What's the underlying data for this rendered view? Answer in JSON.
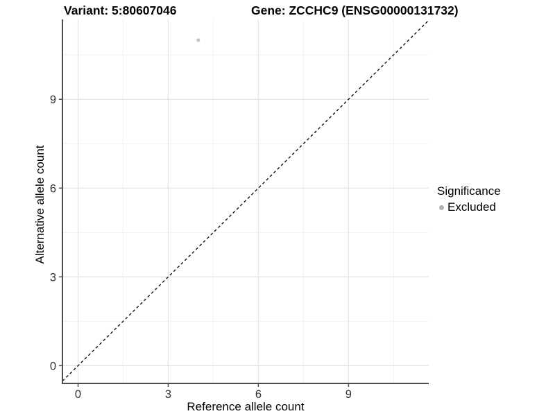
{
  "titles": {
    "variant": "Variant: 5:80607046",
    "gene": "Gene: ZCCHC9 (ENSG00000131732)"
  },
  "legend": {
    "title": "Significance",
    "items": [
      {
        "label": "Excluded",
        "color": "#b0b0b0"
      }
    ]
  },
  "chart_data": {
    "type": "scatter",
    "title": "",
    "xlabel": "Reference allele count",
    "ylabel": "Alternative allele count",
    "xlim": [
      -0.52,
      11.67
    ],
    "ylim": [
      -0.6,
      11.7
    ],
    "xticks": [
      0,
      3,
      6,
      9
    ],
    "yticks": [
      0,
      3,
      6,
      9
    ],
    "minor_xticks": [
      1.5,
      4.5,
      7.5,
      10.5
    ],
    "minor_yticks": [
      1.5,
      4.5,
      7.5,
      10.5
    ],
    "grid": "major and minor, light grey on white",
    "legend_position": "right",
    "series": [
      {
        "name": "Excluded",
        "color": "#c3c3c3",
        "points": [
          {
            "x": 4,
            "y": 11
          }
        ]
      }
    ],
    "reference_line": {
      "kind": "identity y=x",
      "style": "dashed",
      "color": "#000000"
    },
    "style": {
      "grid_major": "#e3e3e3",
      "grid_minor": "#f1f1f1",
      "axis_line": "#4d4d4d",
      "tick_color": "#4d4d4d",
      "tick_label_color": "#303030",
      "point_radius": 2.6,
      "legend_dot_radius": 3.5
    }
  }
}
